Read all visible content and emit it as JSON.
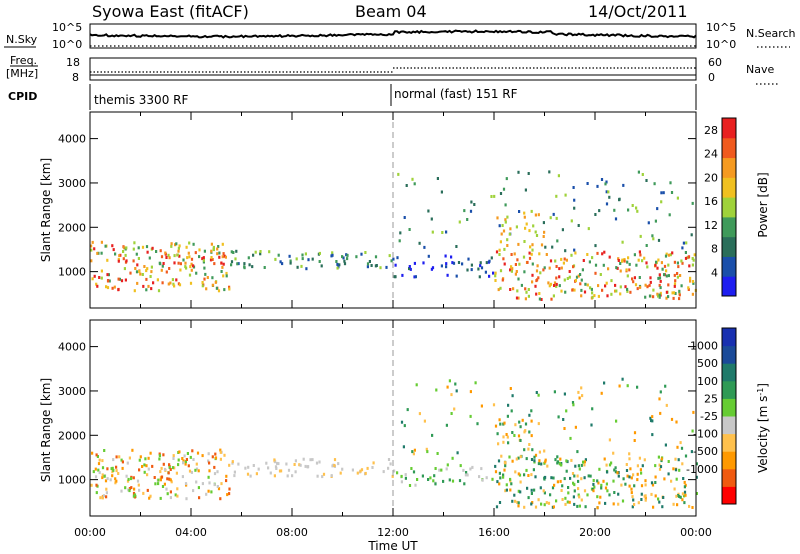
{
  "header": {
    "station": "Syowa East (fitACF)",
    "beam": "Beam 04",
    "date": "14/Oct/2011"
  },
  "strips": {
    "nsky_label": "N.Sky",
    "nsearch_label": "N.Search",
    "freq_label_1": "Freq.",
    "freq_label_2": "[MHz]",
    "nave_label": "Nave",
    "cpid_label": "CPID",
    "nsky_ticks": [
      "10^5",
      "10^0"
    ],
    "nsearch_ticks": [
      "10^5",
      "10^0"
    ],
    "freq_ticks": [
      "18",
      "8"
    ],
    "nave_ticks": [
      "60",
      "0"
    ],
    "cpid_segments": [
      {
        "label": "themis 3300 RF",
        "start_hour": 0
      },
      {
        "label": "normal (fast) 151 RF",
        "start_hour": 12
      }
    ]
  },
  "legend_colors": {
    "power": [
      "#1e1ef0",
      "#1a4faa",
      "#2a6e5a",
      "#3f9a5a",
      "#9fd23a",
      "#f0c020",
      "#f59a20",
      "#f05a1e",
      "#e82020"
    ],
    "velocity": [
      "#ff0000",
      "#f05a10",
      "#ff9900",
      "#ffc14d",
      "#c8c8c8",
      "#66cc33",
      "#2f9a55",
      "#1f7a6a",
      "#1a4a99",
      "#1830b0"
    ]
  },
  "chart_data": [
    {
      "type": "heatmap",
      "xlabel": "Time UT",
      "ylabel": "Slant Range [km]",
      "x_ticks": [
        "00:00",
        "04:00",
        "08:00",
        "12:00",
        "16:00",
        "20:00",
        "00:00"
      ],
      "xlim_hours": [
        0,
        24
      ],
      "y_ticks": [
        "1000",
        "2000",
        "3000",
        "4000"
      ],
      "ylim": [
        180,
        4600
      ],
      "colorbar_label": "Power [dB]",
      "colorbar_ticks": [
        "4",
        "8",
        "12",
        "16",
        "20",
        "24",
        "28"
      ],
      "colorbar_range": [
        0,
        30
      ]
    },
    {
      "type": "heatmap",
      "xlabel": "Time UT",
      "ylabel": "Slant Range [km]",
      "x_ticks": [
        "00:00",
        "04:00",
        "08:00",
        "12:00",
        "16:00",
        "20:00",
        "00:00"
      ],
      "xlim_hours": [
        0,
        24
      ],
      "y_ticks": [
        "1000",
        "2000",
        "3000",
        "4000"
      ],
      "ylim": [
        180,
        4600
      ],
      "colorbar_label": "Velocity [m s",
      "colorbar_label_sup": "-1",
      "colorbar_label_end": "]",
      "colorbar_ticks": [
        "1000",
        "500",
        "100",
        "25",
        "-25",
        "-100",
        "-500",
        "-1000"
      ]
    }
  ]
}
